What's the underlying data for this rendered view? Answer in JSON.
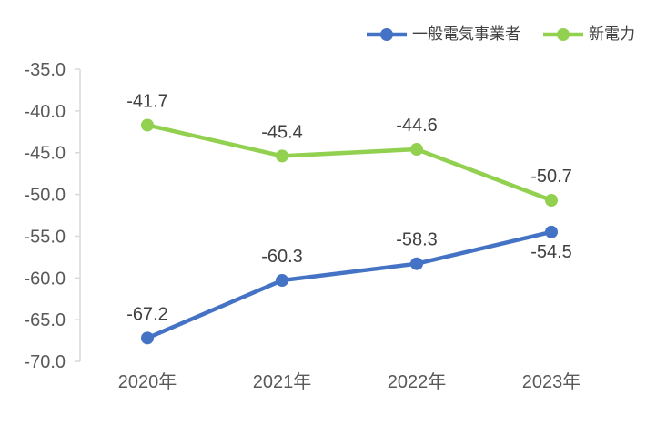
{
  "chart_data": {
    "type": "line",
    "title": "",
    "categories": [
      "2020年",
      "2021年",
      "2022年",
      "2023年"
    ],
    "series": [
      {
        "name": "一般電気事業者",
        "color": "#4472C4",
        "values": [
          -67.2,
          -60.3,
          -58.3,
          -54.5
        ],
        "data_labels": [
          "-67.2",
          "-60.3",
          "-58.3",
          "-54.5"
        ],
        "data_label_positions": [
          "above",
          "above",
          "above",
          "below"
        ]
      },
      {
        "name": "新電力",
        "color": "#92D050",
        "values": [
          -41.7,
          -45.4,
          -44.6,
          -50.7
        ],
        "data_labels": [
          "-41.7",
          "-45.4",
          "-44.6",
          "-50.7"
        ],
        "data_label_positions": [
          "above",
          "above",
          "above",
          "above"
        ]
      }
    ],
    "y_axis": {
      "min": -70,
      "max": -35,
      "step": 5,
      "tick_labels": [
        "-35.0",
        "-40.0",
        "-45.0",
        "-50.0",
        "-55.0",
        "-60.0",
        "-65.0",
        "-70.0"
      ]
    },
    "x_axis": {
      "tick_labels": [
        "2020年",
        "2021年",
        "2022年",
        "2023年"
      ]
    },
    "grid": false,
    "legend": {
      "position": "top-right"
    },
    "colors": {
      "axis_line": "#D9D9D9",
      "tick_label": "#595959",
      "data_label": "#404040",
      "legend_text": "#404040",
      "background": "#FFFFFF"
    }
  }
}
